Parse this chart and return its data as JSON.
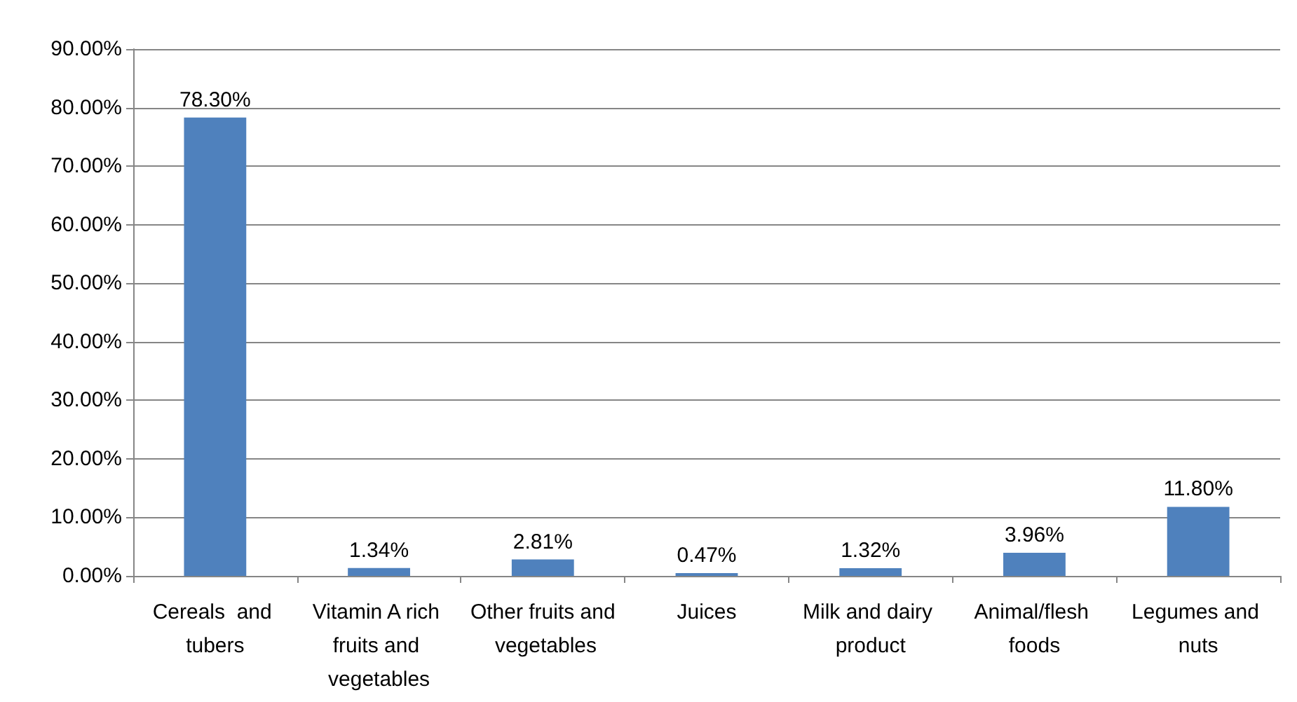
{
  "chart_data": {
    "type": "bar",
    "categories": [
      "Cereals  and tubers",
      "Vitamin A rich fruits and vegetables",
      "Other fruits and vegetables",
      "Juices",
      "Milk and dairy product",
      "Animal/flesh foods",
      "Legumes and nuts"
    ],
    "values": [
      78.3,
      1.34,
      2.81,
      0.47,
      1.32,
      3.96,
      11.8
    ],
    "value_labels": [
      "78.30%",
      "1.34%",
      "2.81%",
      "0.47%",
      "1.32%",
      "3.96%",
      "11.80%"
    ],
    "color": "#4f81bd",
    "ylim": [
      0,
      90
    ],
    "yticks": [
      {
        "value": 0,
        "label": "0.00%"
      },
      {
        "value": 10,
        "label": "10.00%"
      },
      {
        "value": 20,
        "label": "20.00%"
      },
      {
        "value": 30,
        "label": "30.00%"
      },
      {
        "value": 40,
        "label": "40.00%"
      },
      {
        "value": 50,
        "label": "50.00%"
      },
      {
        "value": 60,
        "label": "60.00%"
      },
      {
        "value": 70,
        "label": "70.00%"
      },
      {
        "value": 80,
        "label": "80.00%"
      },
      {
        "value": 90,
        "label": "90.00%"
      }
    ],
    "grid": "y"
  }
}
